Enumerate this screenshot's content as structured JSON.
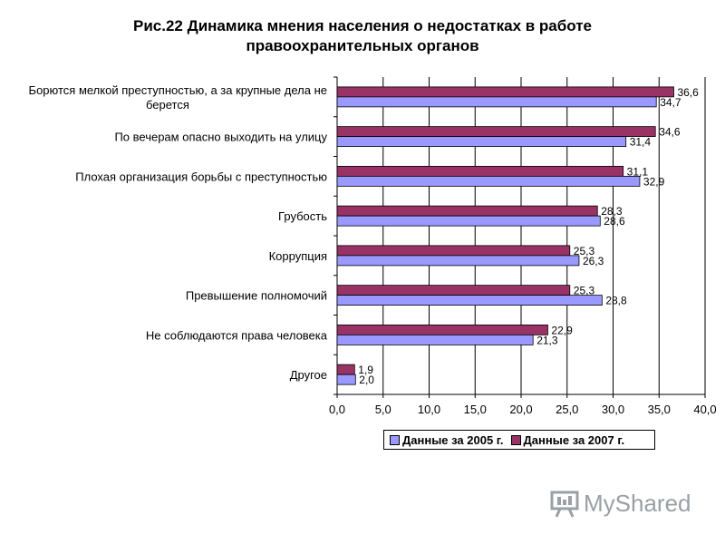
{
  "title": {
    "line1": "Рис.22  Динамика мнения  населения о недостатках в работе",
    "line2": "правоохранительных органов"
  },
  "chart_data": {
    "type": "bar",
    "orientation": "horizontal",
    "categories": [
      [
        "Борются  мелкой преступностью, а за крупные дела не",
        "берется"
      ],
      [
        "По вечерам опасно выходить на улицу"
      ],
      [
        "Плохая организация борьбы с преступностью"
      ],
      [
        "Грубость"
      ],
      [
        "Коррупция"
      ],
      [
        "Превышение полномочий"
      ],
      [
        "Не соблюдаются права человека"
      ],
      [
        "Другое"
      ]
    ],
    "series": [
      {
        "name": "Данные за 2007 г.",
        "color": "#993366",
        "values": [
          36.6,
          34.6,
          31.1,
          28.3,
          25.3,
          25.3,
          22.9,
          1.9
        ],
        "labels": [
          "36,6",
          "34,6",
          "31,1",
          "28,3",
          "25,3",
          "25,3",
          "22,9",
          "1,9"
        ]
      },
      {
        "name": "Данные за 2005 г.",
        "color": "#9999ff",
        "values": [
          34.7,
          31.4,
          32.9,
          28.6,
          26.3,
          28.8,
          21.3,
          2.0
        ],
        "labels": [
          "34,7",
          "31,4",
          "32,9",
          "28,6",
          "26,3",
          "28,8",
          "21,3",
          "2,0"
        ]
      }
    ],
    "xlim": [
      0,
      40
    ],
    "xticks": [
      "0,0",
      "5,0",
      "10,0",
      "15,0",
      "20,0",
      "25,0",
      "30,0",
      "35,0",
      "40,0"
    ],
    "grid": true,
    "legend_position": "bottom"
  },
  "legend": {
    "items": [
      {
        "label": "Данные за 2005 г.",
        "color": "#9999ff"
      },
      {
        "label": "Данные за 2007 г.",
        "color": "#993366"
      }
    ]
  },
  "watermark": {
    "text": "MyShared"
  }
}
